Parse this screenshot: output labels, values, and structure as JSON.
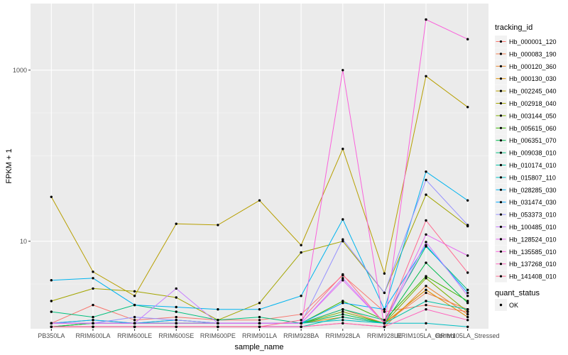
{
  "chart_data": {
    "type": "line",
    "xlabel": "sample_name",
    "ylabel": "FPKM + 1",
    "y_scale": "log10",
    "ylim": [
      0.95,
      6000
    ],
    "y_ticks": [
      {
        "value": 10,
        "label": "10"
      },
      {
        "value": 1000,
        "label": "1000"
      }
    ],
    "categories": [
      "PB350LA",
      "RRIM600LA",
      "RRIM600LE",
      "RRIM600SE",
      "RRIM600PE",
      "RRIM901LA",
      "RRIM928BA",
      "RRIM928LA",
      "RRIM928LE",
      "RRIM105LA_Control",
      "RRIM105LA_Stressed"
    ],
    "grid": true,
    "legend_position": "right",
    "legend_title": "tracking_id",
    "legend2": {
      "title": "quant_status",
      "items": [
        {
          "label": "OK"
        }
      ]
    },
    "series": [
      {
        "name": "Hb_000001_120",
        "color": "#F8766D",
        "values": [
          1.1,
          1.8,
          1.2,
          1.3,
          1.2,
          1.2,
          1.4,
          4.0,
          1.5,
          1.8,
          1.5
        ]
      },
      {
        "name": "Hb_000083_190",
        "color": "#F17D4F",
        "values": [
          1.0,
          1.1,
          1.1,
          1.1,
          1.1,
          1.1,
          1.1,
          1.6,
          1.1,
          2.5,
          1.6
        ]
      },
      {
        "name": "Hb_000120_360",
        "color": "#E8852E",
        "values": [
          1.0,
          1.0,
          1.0,
          1.0,
          1.0,
          1.0,
          1.0,
          1.1,
          1.0,
          3.0,
          1.4
        ]
      },
      {
        "name": "Hb_000130_030",
        "color": "#DC8D00",
        "values": [
          1.1,
          1.1,
          1.1,
          1.1,
          1.1,
          1.1,
          1.1,
          1.3,
          1.1,
          2.7,
          1.3
        ]
      },
      {
        "name": "Hb_002245_040",
        "color": "#B79F00",
        "values": [
          33,
          4.4,
          2.3,
          16,
          15.5,
          30,
          9.0,
          120,
          4.2,
          850,
          370
        ]
      },
      {
        "name": "Hb_002918_040",
        "color": "#A3A500",
        "values": [
          2.0,
          2.8,
          2.6,
          2.2,
          1.2,
          1.9,
          7.4,
          10,
          2.5,
          35,
          15
        ]
      },
      {
        "name": "Hb_003144_050",
        "color": "#7CAE00",
        "values": [
          1.1,
          1.2,
          1.1,
          1.2,
          1.1,
          1.1,
          1.1,
          1.5,
          1.1,
          3.7,
          1.5
        ]
      },
      {
        "name": "Hb_005615_060",
        "color": "#39B600",
        "values": [
          1.0,
          1.1,
          1.1,
          1.1,
          1.1,
          1.1,
          1.1,
          2.0,
          1.2,
          3.9,
          2.0
        ]
      },
      {
        "name": "Hb_006351_070",
        "color": "#00BB4E",
        "values": [
          1.0,
          1.1,
          1.1,
          1.1,
          1.1,
          1.1,
          1.1,
          1.4,
          1.1,
          5.6,
          1.9
        ]
      },
      {
        "name": "Hb_009038_010",
        "color": "#00BF7D",
        "values": [
          1.5,
          1.3,
          1.8,
          1.5,
          1.2,
          1.3,
          1.1,
          1.6,
          1.2,
          8.7,
          2.7
        ]
      },
      {
        "name": "Hb_010174_010",
        "color": "#00C1A3",
        "values": [
          1.0,
          1.0,
          1.0,
          1.0,
          1.0,
          1.0,
          1.0,
          1.3,
          1.1,
          2.0,
          1.6
        ]
      },
      {
        "name": "Hb_015807_110",
        "color": "#00BFC4",
        "values": [
          1.1,
          1.1,
          1.1,
          1.1,
          1.1,
          1.1,
          1.1,
          1.2,
          1.1,
          1.1,
          1.0
        ]
      },
      {
        "name": "Hb_028285_030",
        "color": "#00B4EF",
        "values": [
          3.5,
          3.7,
          1.8,
          1.7,
          1.6,
          1.6,
          2.3,
          18,
          1.6,
          65,
          30
        ]
      },
      {
        "name": "Hb_031474_030",
        "color": "#00A9FF",
        "values": [
          1.1,
          1.2,
          1.1,
          1.2,
          1.1,
          1.1,
          1.1,
          1.9,
          1.6,
          9.0,
          2.5
        ]
      },
      {
        "name": "Hb_053373_010",
        "color": "#9590FF",
        "values": [
          1.1,
          1.1,
          1.3,
          1.2,
          1.1,
          1.1,
          1.1,
          10.5,
          2.5,
          52,
          15.5
        ]
      },
      {
        "name": "Hb_100485_010",
        "color": "#C77CFF",
        "values": [
          1.1,
          1.1,
          1.1,
          2.8,
          1.1,
          1.1,
          1.1,
          3.7,
          1.1,
          9.8,
          2.3
        ]
      },
      {
        "name": "Hb_128524_010",
        "color": "#E76BF3",
        "values": [
          1.1,
          1.1,
          1.1,
          1.1,
          1.1,
          1.1,
          1.1,
          3.5,
          1.1,
          12,
          6.8
        ]
      },
      {
        "name": "Hb_135585_010",
        "color": "#FA62DB",
        "values": [
          1.0,
          1.0,
          1.0,
          1.0,
          1.0,
          1.0,
          1.0,
          1000,
          1.0,
          3900,
          2300
        ]
      },
      {
        "name": "Hb_137268_010",
        "color": "#FF62BC",
        "values": [
          1.0,
          1.0,
          1.0,
          1.0,
          1.0,
          1.0,
          1.0,
          1.1,
          1.0,
          1.6,
          1.2
        ]
      },
      {
        "name": "Hb_141408_010",
        "color": "#FF6C91",
        "values": [
          1.0,
          1.0,
          1.0,
          1.0,
          1.0,
          1.0,
          1.2,
          4.1,
          1.1,
          17.5,
          4.3
        ]
      }
    ]
  }
}
